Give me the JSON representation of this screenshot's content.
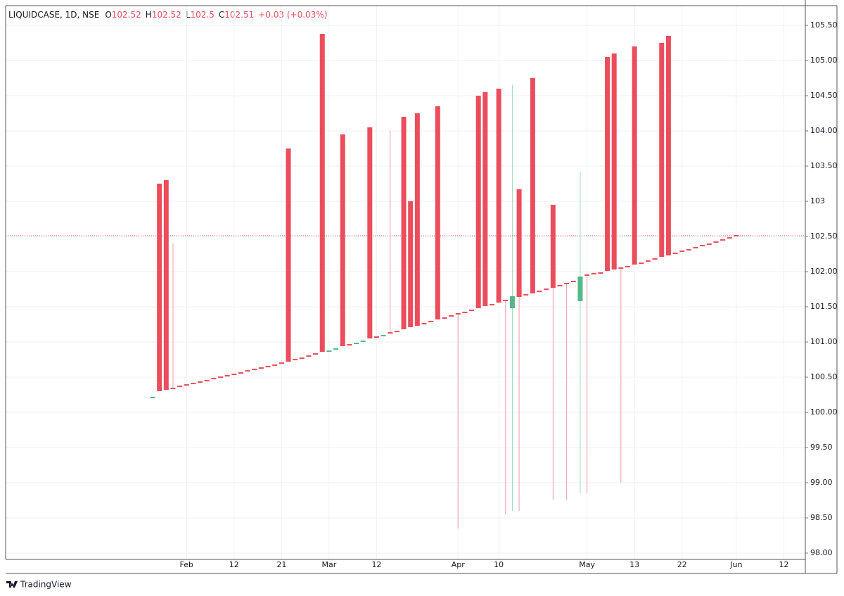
{
  "chart_data": {
    "type": "candlestick",
    "title": "LIQUIDCASE, 1D, NSE",
    "ohlc_legend": [
      {
        "label": "O",
        "value": 102.52
      },
      {
        "label": "H",
        "value": 102.52
      },
      {
        "label": "L",
        "value": 102.5
      },
      {
        "label": "C",
        "value": 102.51
      }
    ],
    "change": "+0.03 (+0.03%)",
    "brand": "TradingView",
    "up_color": "#53b987",
    "down_color": "#eb4d5c",
    "grid": true,
    "ylim": [
      97.91,
      105.78
    ],
    "yticks": [
      {
        "value": 98,
        "label": "98.00"
      },
      {
        "value": 98.5,
        "label": "98.50"
      },
      {
        "value": 99,
        "label": "99.00"
      },
      {
        "value": 99.5,
        "label": "99.50"
      },
      {
        "value": 100,
        "label": "100.00"
      },
      {
        "value": 100.5,
        "label": "100.50"
      },
      {
        "value": 101,
        "label": "101.00"
      },
      {
        "value": 101.5,
        "label": "101.50"
      },
      {
        "value": 102,
        "label": "102.00"
      },
      {
        "value": 102.5,
        "label": "102.50"
      },
      {
        "value": 103,
        "label": "103"
      },
      {
        "value": 103.5,
        "label": "103.50"
      },
      {
        "value": 104,
        "label": "104.00"
      },
      {
        "value": 104.5,
        "label": "104.50"
      },
      {
        "value": 105,
        "label": "105.00"
      },
      {
        "value": 105.5,
        "label": "105.50"
      }
    ],
    "categories": [
      null,
      null,
      null,
      null,
      null,
      "Feb",
      null,
      null,
      null,
      null,
      null,
      null,
      "12",
      null,
      null,
      null,
      null,
      null,
      null,
      "21",
      null,
      null,
      null,
      null,
      null,
      null,
      "Mar",
      null,
      null,
      null,
      null,
      null,
      null,
      "12",
      null,
      null,
      null,
      null,
      null,
      null,
      null,
      null,
      null,
      null,
      null,
      "Apr",
      null,
      null,
      null,
      null,
      null,
      "10",
      null,
      null,
      null,
      null,
      null,
      null,
      null,
      null,
      null,
      null,
      null,
      null,
      "May",
      null,
      null,
      null,
      null,
      null,
      null,
      "13",
      null,
      null,
      null,
      null,
      null,
      null,
      "22",
      null,
      null,
      null,
      null,
      null,
      null,
      null,
      "Jun",
      null,
      null,
      null,
      null,
      null,
      null,
      "12",
      null,
      null,
      null
    ],
    "open": [
      100.2,
      103.25,
      103.3,
      100.35,
      100.38,
      100.4,
      100.42,
      100.44,
      100.46,
      100.49,
      100.51,
      100.53,
      100.55,
      100.57,
      100.6,
      100.62,
      100.64,
      100.66,
      100.68,
      100.71,
      103.75,
      100.76,
      100.78,
      100.81,
      100.84,
      105.38,
      100.87,
      100.9,
      103.95,
      100.97,
      100.98,
      101.01,
      104.05,
      101.08,
      101.09,
      101.14,
      101.16,
      104.2,
      103.0,
      104.25,
      101.27,
      101.3,
      104.35,
      101.35,
      101.38,
      101.41,
      101.43,
      101.46,
      104.5,
      104.55,
      101.54,
      104.6,
      101.6,
      101.48,
      103.17,
      101.68,
      104.75,
      101.73,
      101.76,
      102.95,
      101.81,
      101.84,
      101.87,
      101.58,
      101.96,
      101.98,
      101.99,
      105.05,
      105.1,
      102.06,
      102.08,
      105.2,
      102.13,
      102.16,
      102.19,
      105.25,
      105.35,
      102.27,
      102.3,
      102.32,
      102.35,
      102.38,
      102.4,
      102.43,
      102.46,
      102.49,
      102.52,
      null,
      null,
      null,
      null,
      null,
      null,
      null,
      null,
      null,
      null
    ],
    "high": [
      100.22,
      103.25,
      103.3,
      102.4,
      100.38,
      100.4,
      100.42,
      100.44,
      100.46,
      100.49,
      100.51,
      100.53,
      100.55,
      100.57,
      100.6,
      100.62,
      100.64,
      100.66,
      100.68,
      100.71,
      103.75,
      100.76,
      100.78,
      100.81,
      100.84,
      105.38,
      100.88,
      100.91,
      103.95,
      100.97,
      100.99,
      101.02,
      104.05,
      101.08,
      101.1,
      104.0,
      101.16,
      104.2,
      103.0,
      104.25,
      101.27,
      101.3,
      104.35,
      101.35,
      101.38,
      101.41,
      101.43,
      101.46,
      104.5,
      104.55,
      101.54,
      104.6,
      101.6,
      104.65,
      103.17,
      101.68,
      104.75,
      101.73,
      101.76,
      102.95,
      101.81,
      101.84,
      101.87,
      103.42,
      101.96,
      101.98,
      101.99,
      105.05,
      105.1,
      102.06,
      102.08,
      105.2,
      102.13,
      102.16,
      102.19,
      105.25,
      105.35,
      102.27,
      102.3,
      102.32,
      102.35,
      102.38,
      102.4,
      102.43,
      102.46,
      102.49,
      102.52,
      null,
      null,
      null,
      null,
      null,
      null,
      null,
      null,
      null,
      null
    ],
    "low": [
      100.2,
      100.3,
      100.32,
      100.34,
      100.37,
      100.39,
      100.41,
      100.43,
      100.45,
      100.48,
      100.5,
      100.52,
      100.54,
      100.56,
      100.59,
      100.61,
      100.63,
      100.65,
      100.67,
      100.7,
      100.72,
      100.75,
      100.77,
      100.8,
      100.83,
      100.86,
      100.87,
      100.9,
      100.94,
      100.96,
      100.98,
      101.01,
      101.05,
      101.07,
      101.09,
      101.13,
      101.15,
      101.18,
      101.21,
      101.23,
      101.26,
      101.29,
      101.32,
      101.34,
      101.37,
      98.35,
      101.42,
      101.45,
      101.48,
      101.51,
      101.53,
      101.56,
      98.55,
      98.6,
      98.6,
      101.67,
      101.69,
      101.72,
      101.75,
      98.75,
      101.8,
      98.75,
      101.86,
      98.85,
      98.85,
      101.97,
      101.98,
      102.01,
      102.03,
      99.0,
      102.07,
      102.1,
      102.12,
      102.15,
      102.18,
      102.21,
      102.23,
      102.26,
      102.29,
      102.31,
      102.34,
      102.37,
      102.39,
      102.42,
      102.45,
      102.48,
      102.5,
      null,
      null,
      null,
      null,
      null,
      null,
      null,
      null,
      null,
      null
    ],
    "close": [
      100.22,
      100.3,
      100.32,
      100.34,
      100.37,
      100.39,
      100.41,
      100.43,
      100.45,
      100.48,
      100.5,
      100.52,
      100.54,
      100.56,
      100.59,
      100.61,
      100.63,
      100.65,
      100.67,
      100.7,
      100.72,
      100.75,
      100.77,
      100.8,
      100.83,
      100.86,
      100.88,
      100.91,
      100.94,
      100.96,
      100.99,
      101.02,
      101.05,
      101.07,
      101.1,
      101.13,
      101.15,
      101.18,
      101.21,
      101.23,
      101.26,
      101.29,
      101.32,
      101.34,
      101.37,
      101.4,
      101.42,
      101.45,
      101.48,
      101.51,
      101.53,
      101.56,
      101.59,
      101.65,
      101.64,
      101.67,
      101.69,
      101.72,
      101.75,
      101.77,
      101.8,
      101.83,
      101.86,
      101.93,
      101.95,
      101.97,
      101.98,
      102.01,
      102.03,
      102.05,
      102.07,
      102.1,
      102.12,
      102.15,
      102.18,
      102.21,
      102.23,
      102.26,
      102.29,
      102.31,
      102.34,
      102.37,
      102.39,
      102.42,
      102.45,
      102.48,
      102.51,
      null,
      null,
      null,
      null,
      null,
      null,
      null,
      null,
      null,
      null
    ]
  }
}
